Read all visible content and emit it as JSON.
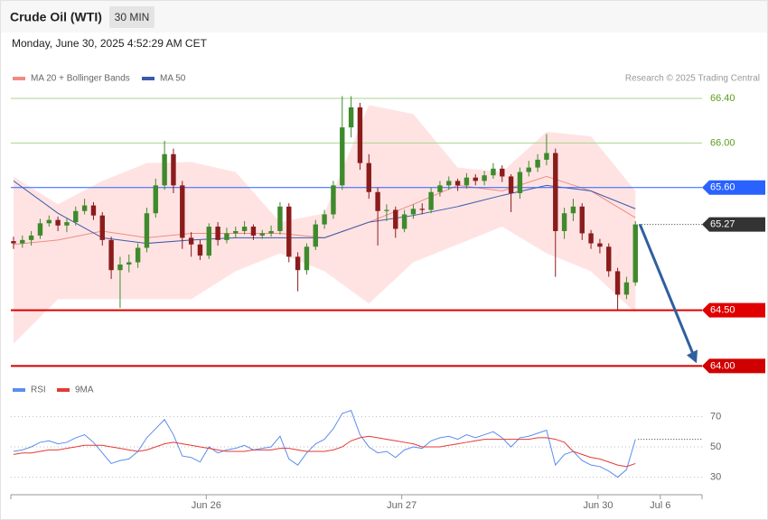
{
  "header": {
    "title": "Crude Oil (WTI)",
    "interval": "30 MIN",
    "date": "Monday, June 30, 2025 4:52:29 AM CET"
  },
  "chart_data": [
    {
      "type": "candlestick",
      "annotation": "Research © 2025 Trading Central",
      "up_color": "#3f8a2c",
      "down_color": "#8b1c1c",
      "xlim": [
        -0.3,
        77.5
      ],
      "ylim": [
        63.92,
        66.5
      ],
      "open": [
        65.12,
        65.1,
        65.13,
        65.17,
        65.28,
        65.31,
        65.26,
        65.29,
        65.39,
        65.44,
        65.35,
        65.13,
        64.86,
        64.91,
        64.93,
        65.06,
        65.37,
        65.62,
        65.9,
        65.62,
        65.15,
        65.09,
        64.99,
        65.25,
        65.13,
        65.19,
        65.21,
        65.25,
        65.17,
        65.19,
        65.21,
        65.43,
        64.98,
        64.86,
        65.07,
        65.27,
        65.36,
        65.62,
        66.14,
        66.32,
        65.82,
        65.56,
        65.39,
        65.4,
        65.23,
        65.36,
        65.41,
        65.4,
        65.56,
        65.62,
        65.66,
        65.62,
        65.69,
        65.66,
        65.71,
        65.77,
        65.7,
        65.55,
        65.74,
        65.78,
        65.85,
        65.91,
        65.21,
        65.37,
        65.43,
        65.19,
        65.1,
        65.07,
        64.85,
        64.64,
        64.75
      ],
      "high": [
        65.16,
        65.17,
        65.21,
        65.32,
        65.35,
        65.34,
        65.33,
        65.43,
        65.5,
        65.47,
        65.38,
        65.16,
        64.98,
        65.0,
        65.1,
        65.42,
        65.68,
        66.02,
        65.95,
        65.66,
        65.2,
        65.13,
        65.28,
        65.29,
        65.24,
        65.25,
        65.3,
        65.27,
        65.22,
        65.26,
        65.47,
        65.46,
        65.02,
        65.1,
        65.31,
        65.4,
        65.66,
        66.42,
        66.42,
        66.36,
        65.9,
        65.6,
        65.45,
        65.43,
        65.4,
        65.45,
        65.46,
        65.6,
        65.66,
        65.7,
        65.68,
        65.73,
        65.72,
        65.75,
        65.82,
        65.8,
        65.72,
        65.78,
        65.84,
        65.9,
        66.08,
        65.95,
        65.42,
        65.5,
        65.46,
        65.22,
        65.14,
        65.1,
        64.88,
        64.8,
        65.3
      ],
      "low": [
        65.05,
        65.06,
        65.08,
        65.14,
        65.25,
        65.21,
        65.2,
        65.26,
        65.36,
        65.31,
        65.08,
        64.78,
        64.52,
        64.84,
        64.88,
        65.02,
        65.33,
        65.58,
        65.55,
        65.05,
        64.98,
        64.95,
        64.96,
        65.08,
        65.1,
        65.15,
        65.18,
        65.13,
        65.14,
        65.16,
        65.18,
        64.93,
        64.67,
        64.82,
        65.04,
        65.23,
        65.32,
        65.58,
        66.05,
        65.76,
        65.5,
        65.08,
        65.3,
        65.15,
        65.2,
        65.32,
        65.36,
        65.37,
        65.52,
        65.58,
        65.57,
        65.59,
        65.62,
        65.62,
        65.68,
        65.65,
        65.38,
        65.5,
        65.7,
        65.74,
        65.8,
        64.8,
        65.14,
        65.3,
        65.13,
        65.05,
        65.01,
        64.8,
        64.5,
        64.6,
        64.72
      ],
      "close": [
        65.1,
        65.13,
        65.17,
        65.28,
        65.31,
        65.26,
        65.29,
        65.39,
        65.44,
        65.35,
        65.13,
        64.86,
        64.91,
        64.93,
        65.06,
        65.37,
        65.62,
        65.9,
        65.62,
        65.15,
        65.09,
        64.99,
        65.25,
        65.13,
        65.19,
        65.21,
        65.25,
        65.17,
        65.19,
        65.21,
        65.43,
        64.98,
        64.86,
        65.07,
        65.27,
        65.36,
        65.62,
        66.14,
        66.32,
        65.82,
        65.56,
        65.39,
        65.4,
        65.23,
        65.36,
        65.41,
        65.4,
        65.56,
        65.62,
        65.66,
        65.62,
        65.69,
        65.66,
        65.71,
        65.77,
        65.7,
        65.55,
        65.74,
        65.78,
        65.85,
        65.91,
        65.21,
        65.37,
        65.43,
        65.19,
        65.1,
        65.07,
        64.85,
        64.64,
        64.75,
        65.27
      ],
      "series": [
        {
          "name": "MA 20 + Bollinger Bands",
          "color": "#f28b82",
          "band_color": "#ffe3e3",
          "x": [
            0,
            5,
            10,
            15,
            20,
            25,
            30,
            35,
            40,
            45,
            50,
            55,
            60,
            65,
            70
          ],
          "values": [
            65.09,
            65.13,
            65.21,
            65.15,
            65.19,
            65.19,
            65.19,
            65.15,
            65.29,
            65.45,
            65.62,
            65.57,
            65.7,
            65.57,
            65.33
          ],
          "upper": [
            65.7,
            65.45,
            65.66,
            65.82,
            65.83,
            65.74,
            65.29,
            65.37,
            66.34,
            66.26,
            65.78,
            65.74,
            66.1,
            66.06,
            65.57
          ],
          "lower": [
            64.2,
            64.6,
            64.6,
            64.6,
            64.6,
            64.85,
            65.01,
            64.85,
            64.56,
            64.93,
            65.09,
            65.25,
            65.01,
            64.85,
            64.48
          ]
        },
        {
          "name": "MA 50",
          "color": "#3b5ba9",
          "x": [
            0,
            5,
            10,
            15,
            20,
            25,
            30,
            35,
            40,
            45,
            50,
            55,
            60,
            65,
            70
          ],
          "values": [
            65.66,
            65.37,
            65.15,
            65.1,
            65.13,
            65.15,
            65.15,
            65.15,
            65.29,
            65.35,
            65.43,
            65.53,
            65.62,
            65.57,
            65.41
          ]
        }
      ],
      "levels": [
        {
          "value": 66.4,
          "label": "66.40",
          "color": "#a8d68e",
          "text_color": "#5a9e1a",
          "box": false,
          "width": 1
        },
        {
          "value": 66.0,
          "label": "66.00",
          "color": "#a8d68e",
          "text_color": "#5a9e1a",
          "box": false,
          "width": 1
        },
        {
          "value": 65.6,
          "label": "65.60",
          "color": "#2962ff",
          "text_color": "#ffffff",
          "box": true,
          "width": 1
        },
        {
          "value": 64.5,
          "label": "64.50",
          "color": "#e00000",
          "text_color": "#ffffff",
          "box": true,
          "width": 2
        },
        {
          "value": 64.0,
          "label": "64.00",
          "color": "#d00000",
          "text_color": "#ffffff",
          "box": true,
          "width": 2
        }
      ],
      "last": {
        "value": 65.27,
        "label": "65.27",
        "color": "#333333"
      },
      "arrow_color": "#2f5f9e"
    },
    {
      "type": "line",
      "xlim": [
        -0.3,
        77.5
      ],
      "ylim": [
        22,
        75
      ],
      "yticks": [
        30,
        50,
        70
      ],
      "xticks": [
        {
          "value": 21.7,
          "label": "Jun 26"
        },
        {
          "value": 43.7,
          "label": "Jun 27"
        },
        {
          "value": 65.8,
          "label": "Jun 30"
        },
        {
          "value": 72.8,
          "label": "Jul 6"
        }
      ],
      "series": [
        {
          "name": "RSI",
          "color": "#5b8def",
          "values": [
            47,
            48,
            50,
            53,
            54,
            52,
            53,
            56,
            58,
            53,
            46,
            39,
            41,
            42,
            47,
            56,
            62,
            68,
            58,
            44,
            43,
            40,
            50,
            46,
            48,
            49,
            51,
            48,
            49,
            50,
            57,
            42,
            38,
            46,
            52,
            55,
            62,
            72,
            74,
            58,
            50,
            46,
            47,
            43,
            48,
            50,
            49,
            54,
            56,
            57,
            55,
            58,
            56,
            58,
            60,
            56,
            50,
            56,
            57,
            59,
            61,
            38,
            45,
            47,
            41,
            38,
            37,
            34,
            30,
            35,
            55
          ]
        },
        {
          "name": "9MA",
          "color": "#e53935",
          "values": [
            45,
            46,
            46,
            47,
            48,
            48,
            49,
            50,
            51,
            51,
            51,
            50,
            49,
            48,
            47,
            48,
            50,
            52,
            53,
            52,
            51,
            50,
            49,
            48,
            47,
            47,
            47,
            48,
            48,
            48,
            49,
            49,
            48,
            47,
            47,
            47,
            48,
            50,
            54,
            56,
            57,
            56,
            55,
            54,
            53,
            52,
            50,
            50,
            50,
            51,
            52,
            53,
            54,
            55,
            55,
            55,
            55,
            55,
            55,
            56,
            56,
            55,
            53,
            47,
            45,
            43,
            42,
            40,
            38,
            37,
            39
          ]
        }
      ]
    }
  ]
}
